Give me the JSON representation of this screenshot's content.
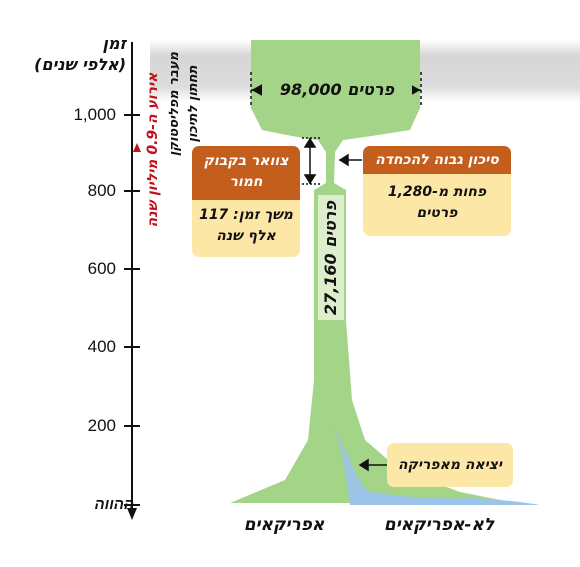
{
  "axis": {
    "title_line1": "זמן",
    "title_line2": "(אלפי שנים)",
    "ticks": [
      "1,000",
      "800",
      "600",
      "400",
      "200",
      "ההווה"
    ],
    "event_label": "אירוע ה-0.9 מיליון שנה",
    "transition_label_line1": "מעבר מפליסטוקן",
    "transition_label_line2": "תחתון לתיכון"
  },
  "population": {
    "top_label": "98,000 פרטים",
    "neck_label": "27,160 פרטים"
  },
  "bottleneck_box": {
    "title": "צוואר בקבוק חמור",
    "detail": "משך זמן: 117 אלף שנה"
  },
  "risk_box": {
    "title": "סיכון גבוה להכחדה",
    "detail": "פחות מ-1,280 פרטים"
  },
  "out_of_africa": {
    "label": "יציאה מאפריקה"
  },
  "bottom_labels": {
    "africans": "אפריקאים",
    "non_africans": "לא-אפריקאים"
  },
  "colors": {
    "population_green": "#a3d488",
    "out_of_africa_blue": "#9cc4e8",
    "top_band_gray": "#d9d9d9",
    "box_header_orange": "#c45e1c",
    "box_body_yellow": "#fde7a6",
    "event_marker_red": "#c0101a"
  }
}
